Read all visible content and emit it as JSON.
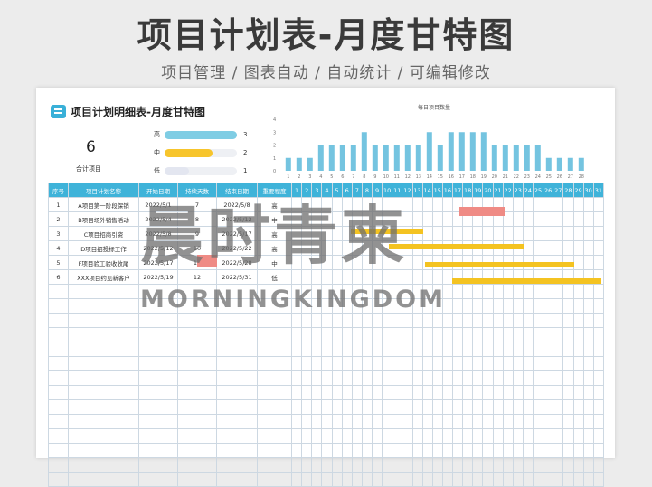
{
  "page": {
    "title": "项目计划表-月度甘特图",
    "subtitle": "项目管理 / 图表自动 / 自动统计 / 可编辑修改"
  },
  "sheet": {
    "title": "项目计划明细表-月度甘特图",
    "count": "6",
    "count_label": "合计项目",
    "priority": [
      {
        "label": "高",
        "value": 3,
        "color": "#7fcde4"
      },
      {
        "label": "中",
        "value": 2,
        "color": "#f7c52c"
      },
      {
        "label": "低",
        "value": 1,
        "color": "#e3e6f0"
      }
    ]
  },
  "chart_data": {
    "type": "bar",
    "title": "每日项目数量",
    "categories": [
      "1",
      "2",
      "3",
      "4",
      "5",
      "6",
      "7",
      "8",
      "9",
      "10",
      "11",
      "12",
      "13",
      "14",
      "15",
      "16",
      "17",
      "18",
      "19",
      "20",
      "21",
      "22",
      "23",
      "24",
      "25",
      "26",
      "27",
      "28"
    ],
    "values": [
      1,
      1,
      1,
      2,
      2,
      2,
      2,
      3,
      2,
      2,
      2,
      2,
      2,
      3,
      2,
      3,
      3,
      3,
      3,
      2,
      2,
      2,
      2,
      2,
      1,
      1,
      1,
      1
    ],
    "ylim": [
      0,
      4
    ],
    "yticks": [
      "4",
      "3",
      "2",
      "1",
      "0"
    ],
    "color": "#74c4e0"
  },
  "table": {
    "headers": [
      "序号",
      "项目计划名称",
      "开始日期",
      "持续天数",
      "结束日期",
      "重要程度"
    ],
    "days": [
      "1",
      "2",
      "3",
      "4",
      "5",
      "6",
      "7",
      "8",
      "9",
      "10",
      "11",
      "12",
      "13",
      "14",
      "15",
      "16",
      "17",
      "18",
      "19",
      "20",
      "21",
      "22",
      "23",
      "24",
      "25",
      "26",
      "27",
      "28",
      "29",
      "30",
      "31"
    ],
    "rows": [
      [
        "1",
        "A项目第一阶段保销",
        "2022/5/1",
        "7",
        "2022/5/8",
        "高"
      ],
      [
        "2",
        "B项目场外销售活动",
        "2022/5/4",
        "8",
        "2022/5/12",
        "中"
      ],
      [
        "3",
        "C项目招商引资",
        "2022/5/8",
        "9",
        "2022/5/17",
        "高"
      ],
      [
        "4",
        "D项目招投标工作",
        "2022/5/12",
        "10",
        "2022/5/22",
        "高"
      ],
      [
        "5",
        "F项目验工验收收尾",
        "2022/5/17",
        "11",
        "2022/5/28",
        "中"
      ],
      [
        "6",
        "XXX项目约见新客户",
        "2022/5/19",
        "12",
        "2022/5/31",
        "低"
      ]
    ],
    "empty_rows": 14
  },
  "watermark": {
    "cn": "晨时青柬",
    "en": "MORNINGKINGDOM"
  }
}
